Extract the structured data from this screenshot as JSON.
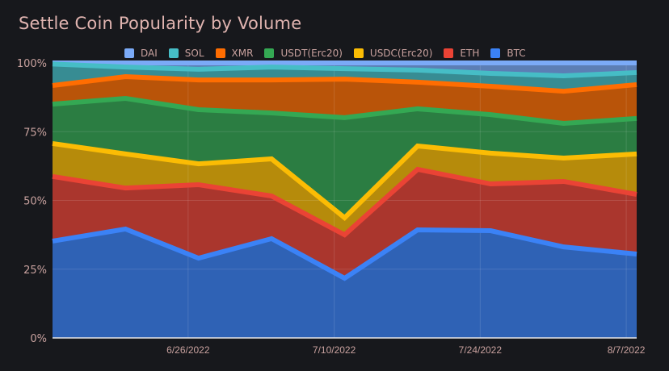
{
  "chart_data": {
    "type": "area",
    "stacked": true,
    "normalized": true,
    "title": "Settle Coin Popularity by Volume",
    "xlabel": "",
    "ylabel": "",
    "ylim": [
      0,
      100
    ],
    "yticks": [
      "0%",
      "25%",
      "50%",
      "75%",
      "100%"
    ],
    "xticks": [
      "6/26/2022",
      "7/10/2022",
      "7/24/2022",
      "8/7/2022"
    ],
    "grid": true,
    "legend_position": "top",
    "x": [
      "6/13/2022",
      "6/20/2022",
      "6/27/2022",
      "7/4/2022",
      "7/11/2022",
      "7/18/2022",
      "7/25/2022",
      "8/1/2022",
      "8/8/2022"
    ],
    "series": [
      {
        "name": "BTC",
        "color": "#3b82f6",
        "values": [
          35.2,
          39.6,
          29.0,
          36.1,
          21.7,
          39.3,
          39.0,
          33.1,
          30.5
        ]
      },
      {
        "name": "ETH",
        "color": "#ea4335",
        "values": [
          23.5,
          14.9,
          26.7,
          15.5,
          15.8,
          22.0,
          17.0,
          23.8,
          21.7
        ]
      },
      {
        "name": "USDC(Erc20)",
        "color": "#fbbc04",
        "values": [
          12.0,
          12.4,
          7.6,
          13.5,
          6.2,
          8.5,
          11.2,
          8.5,
          14.7
        ]
      },
      {
        "name": "USDT(Erc20)",
        "color": "#34a853",
        "values": [
          14.3,
          20.2,
          19.7,
          16.7,
          36.4,
          13.5,
          14.0,
          12.6,
          12.9
        ]
      },
      {
        "name": "XMR",
        "color": "#ff6d01",
        "values": [
          6.8,
          7.9,
          10.8,
          12.0,
          14.0,
          9.7,
          10.3,
          11.7,
          12.3
        ]
      },
      {
        "name": "SOL",
        "color": "#46bdc6",
        "values": [
          7.8,
          3.5,
          3.9,
          4.7,
          3.8,
          4.4,
          4.7,
          5.6,
          4.4
        ]
      },
      {
        "name": "DAI",
        "color": "#7baaf7",
        "values": [
          0.4,
          1.5,
          2.3,
          1.5,
          2.1,
          2.6,
          3.8,
          4.7,
          3.5
        ]
      }
    ],
    "legend_order": [
      "DAI",
      "SOL",
      "XMR",
      "USDT(Erc20)",
      "USDC(Erc20)",
      "ETH",
      "BTC"
    ]
  }
}
